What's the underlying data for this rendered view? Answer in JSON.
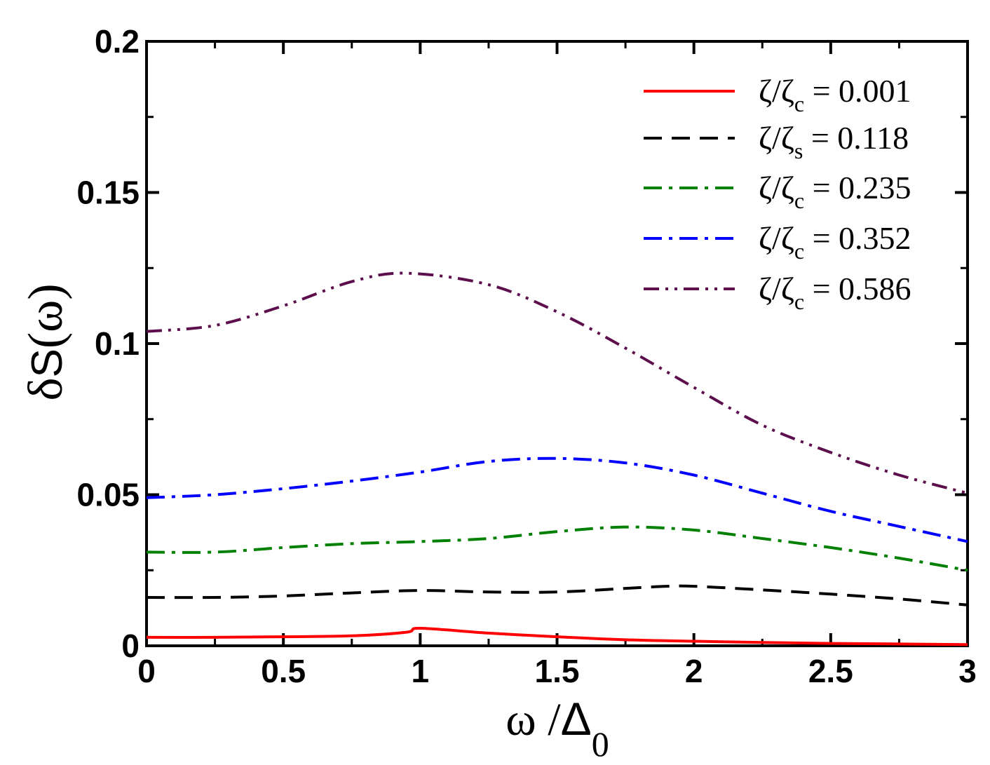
{
  "chart_data": {
    "type": "line",
    "xlabel": {
      "symbol": "ω",
      "sep": " /",
      "delta": "Δ",
      "sub": "0"
    },
    "ylabel": {
      "prefix": "δ",
      "s": "S",
      "open": "(",
      "omega": "ω",
      "close": ")"
    },
    "xlim": [
      0,
      3
    ],
    "ylim": [
      0,
      0.2
    ],
    "xticks": [
      0,
      0.5,
      1,
      1.5,
      2,
      2.5,
      3
    ],
    "xtick_labels": [
      "0",
      "0.5",
      "1",
      "1.5",
      "2",
      "2.5",
      "3"
    ],
    "yticks": [
      0,
      0.05,
      0.1,
      0.15,
      0.2
    ],
    "ytick_labels": [
      "0",
      "0.05",
      "0.1",
      "0.15",
      "0.2"
    ],
    "grid": false,
    "legend_position": "top-right",
    "series": [
      {
        "name": "ζ/ζc = 0.001",
        "legend": {
          "zeta": "ζ",
          "slash": "/",
          "zeta2": "ζ",
          "sub": "c",
          "eq": "= 0.001"
        },
        "color": "#ff0000",
        "dash": "solid",
        "x": [
          0,
          0.25,
          0.5,
          0.75,
          0.95,
          1.0,
          1.25,
          1.5,
          1.75,
          2.0,
          2.25,
          2.5,
          2.75,
          3.0
        ],
        "y": [
          0.0028,
          0.0028,
          0.003,
          0.0033,
          0.0045,
          0.0058,
          0.0042,
          0.003,
          0.002,
          0.0015,
          0.0011,
          0.0008,
          0.0006,
          0.0004
        ]
      },
      {
        "name": "ζ/ζs = 0.118",
        "legend": {
          "zeta": "ζ",
          "slash": "/",
          "zeta2": "ζ",
          "sub": "s",
          "eq": "= 0.118"
        },
        "color": "#000000",
        "dash": "dashed",
        "x": [
          0,
          0.25,
          0.5,
          0.75,
          1.0,
          1.25,
          1.5,
          1.75,
          1.9,
          2.0,
          2.25,
          2.5,
          2.75,
          3.0
        ],
        "y": [
          0.016,
          0.016,
          0.0165,
          0.0175,
          0.0183,
          0.0178,
          0.0178,
          0.019,
          0.0197,
          0.0197,
          0.0185,
          0.0171,
          0.0155,
          0.0135
        ]
      },
      {
        "name": "ζ/ζc = 0.235",
        "legend": {
          "zeta": "ζ",
          "slash": "/",
          "zeta2": "ζ",
          "sub": "c",
          "eq": "= 0.235"
        },
        "color": "#008000",
        "dash": "dashdot",
        "x": [
          0,
          0.25,
          0.5,
          0.75,
          1.0,
          1.25,
          1.5,
          1.75,
          2.0,
          2.25,
          2.5,
          2.75,
          3.0
        ],
        "y": [
          0.031,
          0.031,
          0.0325,
          0.0338,
          0.0345,
          0.0355,
          0.0378,
          0.0393,
          0.0383,
          0.0355,
          0.0325,
          0.029,
          0.025
        ]
      },
      {
        "name": "ζ/ζc = 0.352",
        "legend": {
          "zeta": "ζ",
          "slash": "/",
          "zeta2": "ζ",
          "sub": "c",
          "eq": "= 0.352"
        },
        "color": "#0000ff",
        "dash": "dashdot",
        "x": [
          0,
          0.25,
          0.5,
          0.75,
          1.0,
          1.25,
          1.5,
          1.75,
          2.0,
          2.25,
          2.5,
          2.75,
          3.0
        ],
        "y": [
          0.049,
          0.05,
          0.052,
          0.0545,
          0.0575,
          0.061,
          0.062,
          0.0605,
          0.0565,
          0.0505,
          0.0445,
          0.0395,
          0.0345
        ]
      },
      {
        "name": "ζ/ζc = 0.586",
        "legend": {
          "zeta": "ζ",
          "slash": "/",
          "zeta2": "ζ",
          "sub": "c",
          "eq": "= 0.586"
        },
        "color": "#5c0f4c",
        "dash": "dashdotdot",
        "x": [
          0,
          0.25,
          0.5,
          0.75,
          0.95,
          1.25,
          1.5,
          1.75,
          2.0,
          2.25,
          2.5,
          2.75,
          3.0
        ],
        "y": [
          0.104,
          0.106,
          0.1125,
          0.1205,
          0.1233,
          0.1195,
          0.1105,
          0.0985,
          0.0855,
          0.073,
          0.064,
          0.0565,
          0.0505
        ]
      }
    ]
  }
}
